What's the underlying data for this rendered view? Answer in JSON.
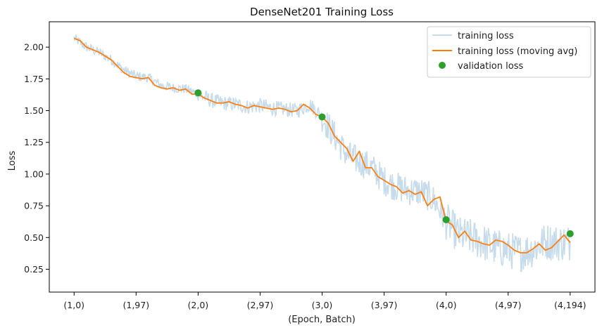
{
  "chart_data": {
    "type": "line",
    "title": "DenseNet201 Training Loss",
    "xlabel": "(Epoch, Batch)",
    "ylabel": "Loss",
    "batches_per_epoch": 194,
    "x_range": [
      -0.2,
      4.2
    ],
    "ylim": [
      0.07,
      2.2
    ],
    "x_ticks": [
      {
        "value": 0.0,
        "label": "(1,0)"
      },
      {
        "value": 0.5,
        "label": "(1,97)"
      },
      {
        "value": 1.0,
        "label": "(2,0)"
      },
      {
        "value": 1.5,
        "label": "(2,97)"
      },
      {
        "value": 2.0,
        "label": "(3,0)"
      },
      {
        "value": 2.5,
        "label": "(3,97)"
      },
      {
        "value": 3.0,
        "label": "(4,0)"
      },
      {
        "value": 3.5,
        "label": "(4,97)"
      },
      {
        "value": 4.0,
        "label": "(4,194)"
      }
    ],
    "y_ticks": [
      {
        "value": 0.25,
        "label": "0.25"
      },
      {
        "value": 0.5,
        "label": "0.50"
      },
      {
        "value": 0.75,
        "label": "0.75"
      },
      {
        "value": 1.0,
        "label": "1.00"
      },
      {
        "value": 1.25,
        "label": "1.25"
      },
      {
        "value": 1.5,
        "label": "1.50"
      },
      {
        "value": 1.75,
        "label": "1.75"
      },
      {
        "value": 2.0,
        "label": "2.00"
      }
    ],
    "grid": false,
    "legend_position": "top-right",
    "series": [
      {
        "name": "training loss",
        "kind": "line",
        "color": "#c6dcec",
        "anchor_x": [
          0.0,
          0.1,
          0.2,
          0.3,
          0.4,
          0.5,
          0.6,
          0.7,
          0.8,
          0.9,
          1.0,
          1.1,
          1.2,
          1.3,
          1.4,
          1.5,
          1.6,
          1.7,
          1.8,
          1.9,
          2.0,
          2.1,
          2.2,
          2.3,
          2.4,
          2.5,
          2.6,
          2.7,
          2.8,
          2.9,
          3.0,
          3.1,
          3.2,
          3.3,
          3.4,
          3.5,
          3.6,
          3.7,
          3.8,
          3.9,
          4.0
        ],
        "anchor_y": [
          2.07,
          2.0,
          1.96,
          1.9,
          1.82,
          1.77,
          1.76,
          1.7,
          1.68,
          1.67,
          1.63,
          1.58,
          1.56,
          1.55,
          1.53,
          1.54,
          1.52,
          1.51,
          1.5,
          1.55,
          1.45,
          1.3,
          1.15,
          1.1,
          1.05,
          0.95,
          0.9,
          0.87,
          0.86,
          0.8,
          0.63,
          0.52,
          0.5,
          0.46,
          0.42,
          0.4,
          0.38,
          0.41,
          0.47,
          0.46,
          0.46
        ],
        "noise_amplitude_by_epoch": [
          0.04,
          0.06,
          0.12,
          0.15,
          0.15
        ]
      },
      {
        "name": "training loss (moving avg)",
        "kind": "line",
        "color": "#ff7f0e",
        "x": [
          0.0,
          0.05,
          0.1,
          0.15,
          0.2,
          0.25,
          0.3,
          0.35,
          0.4,
          0.45,
          0.5,
          0.55,
          0.6,
          0.65,
          0.7,
          0.75,
          0.8,
          0.85,
          0.9,
          0.95,
          1.0,
          1.05,
          1.1,
          1.15,
          1.2,
          1.25,
          1.3,
          1.35,
          1.4,
          1.45,
          1.5,
          1.55,
          1.6,
          1.65,
          1.7,
          1.75,
          1.8,
          1.85,
          1.9,
          1.95,
          2.0,
          2.05,
          2.1,
          2.15,
          2.2,
          2.25,
          2.3,
          2.35,
          2.4,
          2.45,
          2.5,
          2.55,
          2.6,
          2.65,
          2.7,
          2.75,
          2.8,
          2.85,
          2.9,
          2.95,
          3.0,
          3.05,
          3.1,
          3.15,
          3.2,
          3.25,
          3.3,
          3.35,
          3.4,
          3.45,
          3.5,
          3.55,
          3.6,
          3.65,
          3.7,
          3.75,
          3.8,
          3.85,
          3.9,
          3.95,
          4.0
        ],
        "y": [
          2.07,
          2.05,
          2.0,
          1.98,
          1.96,
          1.93,
          1.9,
          1.85,
          1.8,
          1.77,
          1.76,
          1.75,
          1.76,
          1.7,
          1.68,
          1.67,
          1.68,
          1.66,
          1.67,
          1.63,
          1.63,
          1.6,
          1.58,
          1.56,
          1.56,
          1.57,
          1.55,
          1.54,
          1.52,
          1.54,
          1.53,
          1.52,
          1.51,
          1.52,
          1.51,
          1.49,
          1.5,
          1.55,
          1.52,
          1.47,
          1.45,
          1.4,
          1.3,
          1.25,
          1.2,
          1.1,
          1.18,
          1.05,
          1.05,
          0.98,
          0.95,
          0.92,
          0.9,
          0.85,
          0.87,
          0.84,
          0.86,
          0.75,
          0.8,
          0.82,
          0.63,
          0.6,
          0.5,
          0.55,
          0.48,
          0.47,
          0.45,
          0.44,
          0.48,
          0.47,
          0.44,
          0.4,
          0.38,
          0.38,
          0.41,
          0.45,
          0.4,
          0.42,
          0.47,
          0.52,
          0.46
        ]
      },
      {
        "name": "validation loss",
        "kind": "scatter",
        "color": "#2ca02c",
        "x": [
          1.0,
          2.0,
          3.0,
          4.0
        ],
        "y": [
          1.64,
          1.45,
          0.64,
          0.53
        ]
      }
    ]
  }
}
